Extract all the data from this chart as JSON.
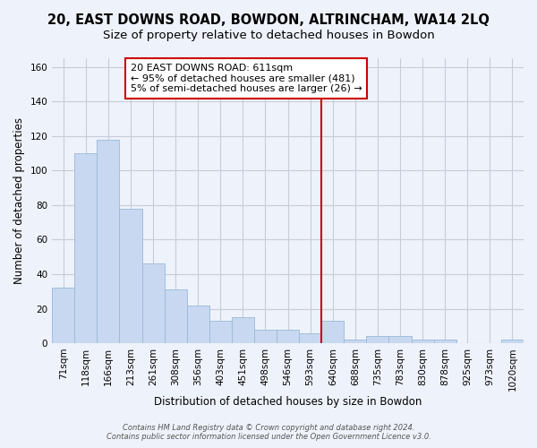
{
  "title": "20, EAST DOWNS ROAD, BOWDON, ALTRINCHAM, WA14 2LQ",
  "subtitle": "Size of property relative to detached houses in Bowdon",
  "xlabel": "Distribution of detached houses by size in Bowdon",
  "ylabel": "Number of detached properties",
  "bar_color": "#c8d8f0",
  "bar_edge_color": "#9ab8d8",
  "categories": [
    "71sqm",
    "118sqm",
    "166sqm",
    "213sqm",
    "261sqm",
    "308sqm",
    "356sqm",
    "403sqm",
    "451sqm",
    "498sqm",
    "546sqm",
    "593sqm",
    "640sqm",
    "688sqm",
    "735sqm",
    "783sqm",
    "830sqm",
    "878sqm",
    "925sqm",
    "973sqm",
    "1020sqm"
  ],
  "values": [
    32,
    110,
    118,
    78,
    46,
    31,
    22,
    13,
    15,
    8,
    8,
    6,
    13,
    2,
    4,
    4,
    2,
    2,
    0,
    0,
    2
  ],
  "ylim": [
    0,
    165
  ],
  "yticks": [
    0,
    20,
    40,
    60,
    80,
    100,
    120,
    140,
    160
  ],
  "property_line_x": 11.5,
  "property_line_color": "#cc0000",
  "annotation_title": "20 EAST DOWNS ROAD: 611sqm",
  "annotation_line1": "← 95% of detached houses are smaller (481)",
  "annotation_line2": "5% of semi-detached houses are larger (26) →",
  "footer_line1": "Contains HM Land Registry data © Crown copyright and database right 2024.",
  "footer_line2": "Contains public sector information licensed under the Open Government Licence v3.0.",
  "background_color": "#eef2fa",
  "plot_bg_color": "#eef2fa",
  "grid_color": "#c8ccd8",
  "title_fontsize": 10.5,
  "subtitle_fontsize": 9.5,
  "axis_fontsize": 8.5,
  "tick_fontsize": 7.5,
  "footer_fontsize": 6.0,
  "annotation_fontsize": 8.0
}
